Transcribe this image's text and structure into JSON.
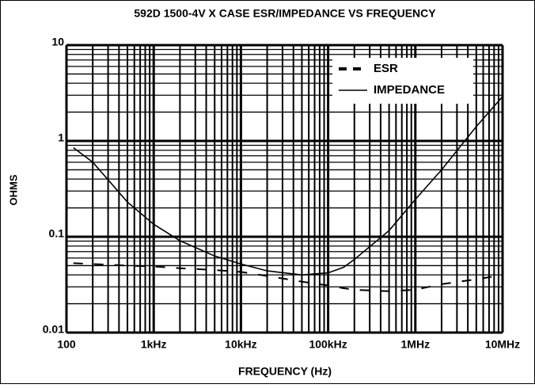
{
  "chart_data": {
    "type": "line",
    "title": "592D 1500-4V X CASE ESR/IMPEDANCE VS FREQUENCY",
    "xlabel": "FREQUENCY (Hz)",
    "ylabel": "OHMS",
    "xscale": "log",
    "yscale": "log",
    "grid": true,
    "legend": "upper right",
    "xlim": [
      100,
      10000000
    ],
    "ylim": [
      0.01,
      10
    ],
    "xticks": [
      100,
      {
        "value": 1000,
        "label": "1kHz"
      },
      {
        "value": 10000,
        "label": "10kHz"
      },
      {
        "value": 100000,
        "label": "100kHz"
      },
      {
        "value": 1000000,
        "label": "1MHz"
      },
      {
        "value": 10000000,
        "label": "10MHz"
      }
    ],
    "yticks": [
      0.01,
      0.1,
      1,
      10
    ],
    "x": [
      120,
      200,
      500,
      1000,
      2000,
      5000,
      10000,
      20000,
      50000,
      100000,
      150000,
      200000,
      500000,
      1000000,
      2000000,
      5000000,
      10000000
    ],
    "series": [
      {
        "name": "ESR",
        "color": "#000000",
        "style": "dashed",
        "values": [
          0.053,
          0.052,
          0.05,
          0.049,
          0.047,
          0.045,
          0.043,
          0.039,
          0.034,
          0.031,
          0.029,
          0.028,
          0.027,
          0.028,
          0.032,
          0.036,
          0.04
        ]
      },
      {
        "name": "IMPEDANCE",
        "color": "#000000",
        "style": "solid",
        "values": [
          0.85,
          0.6,
          0.23,
          0.135,
          0.091,
          0.063,
          0.052,
          0.044,
          0.04,
          0.042,
          0.048,
          0.058,
          0.116,
          0.245,
          0.5,
          1.41,
          2.9
        ]
      }
    ]
  }
}
